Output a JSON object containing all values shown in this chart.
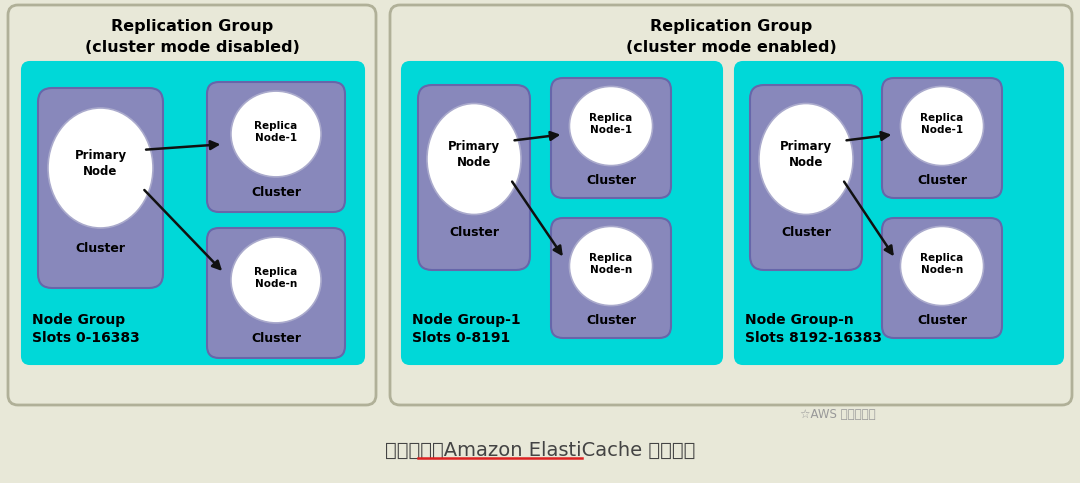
{
  "bg_color": "#e8e8d8",
  "outer_border_color": "#b0b098",
  "cyan_color": "#00d8d8",
  "blue_box_facecolor": "#8888bb",
  "blue_box_edgecolor": "#6666aa",
  "white_circle_color": "#ffffff",
  "white_circle_edge": "#aaaacc",
  "text_color": "#000000",
  "arrow_color": "#111111",
  "footer_text": "图片来源：Amazon ElastiCache 官方文档",
  "watermark": "AWS 架构师之旅",
  "left_group_title_line1": "Replication Group",
  "left_group_title_line2": "(cluster mode disabled)",
  "right_group_title_line1": "Replication Group",
  "right_group_title_line2": "(cluster mode enabled)",
  "left_node_group_line1": "Node Group",
  "left_node_group_line2": "Slots 0-16383",
  "right_ng1_line1": "Node Group-1",
  "right_ng1_line2": "Slots 0-8191",
  "right_ngn_line1": "Node Group-n",
  "right_ngn_line2": "Slots 8192-16383"
}
